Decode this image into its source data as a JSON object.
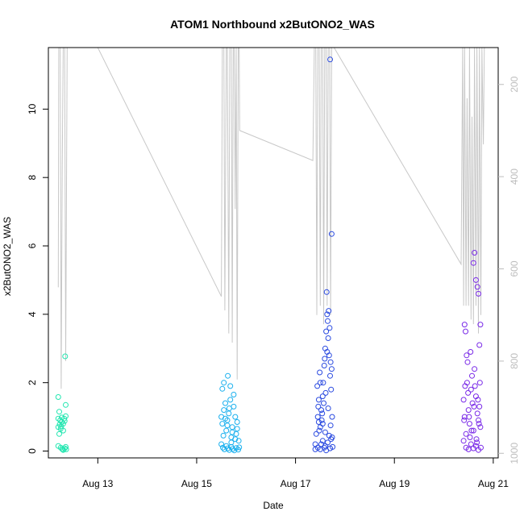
{
  "chart_data": {
    "type": "scatter",
    "title": "ATOM1 Northbound x2ButONO2_WAS",
    "xlabel": "Date",
    "ylabel": "x2ButONO2_WAS",
    "x_unit": "day of August",
    "xlim": [
      12.0,
      21.1
    ],
    "ylim": [
      -0.2,
      11.8
    ],
    "x_ticks": [
      {
        "value": 13,
        "label": "Aug 13"
      },
      {
        "value": 15,
        "label": "Aug 15"
      },
      {
        "value": 17,
        "label": "Aug 17"
      },
      {
        "value": 19,
        "label": "Aug 19"
      },
      {
        "value": 21,
        "label": "Aug 21"
      }
    ],
    "y_ticks": [
      {
        "value": 0,
        "label": "0"
      },
      {
        "value": 2,
        "label": "2"
      },
      {
        "value": 4,
        "label": "4"
      },
      {
        "value": 6,
        "label": "6"
      },
      {
        "value": 8,
        "label": "8"
      },
      {
        "value": 10,
        "label": "10"
      }
    ],
    "secondary_axis": {
      "reversed": true,
      "lim": [
        1010,
        120
      ],
      "color": "#bdbdbd",
      "ticks": [
        {
          "value": 200,
          "label": "200"
        },
        {
          "value": 400,
          "label": "400"
        },
        {
          "value": 600,
          "label": "600"
        },
        {
          "value": 800,
          "label": "800"
        },
        {
          "value": 1000,
          "label": "1000"
        }
      ]
    },
    "grid": false,
    "legend": "none",
    "colors": {
      "aug12": "#22e6b0",
      "aug15": "#1ab0ee",
      "aug17": "#2a4ae0",
      "aug20": "#7a2ae8",
      "pressure_line": "#c8c8c8"
    },
    "series": [
      {
        "color": "#22e6b0",
        "points": [
          [
            12.2,
            1.58
          ],
          [
            12.22,
            1.15
          ],
          [
            12.2,
            0.95
          ],
          [
            12.24,
            0.9
          ],
          [
            12.27,
            0.85
          ],
          [
            12.3,
            0.8
          ],
          [
            12.23,
            0.78
          ],
          [
            12.32,
            0.95
          ],
          [
            12.35,
            1.02
          ],
          [
            12.2,
            0.7
          ],
          [
            12.25,
            0.65
          ],
          [
            12.3,
            0.6
          ],
          [
            12.22,
            0.5
          ],
          [
            12.26,
            0.72
          ],
          [
            12.33,
            0.88
          ],
          [
            12.35,
            1.35
          ],
          [
            12.2,
            0.15
          ],
          [
            12.25,
            0.1
          ],
          [
            12.28,
            0.06
          ],
          [
            12.3,
            0.04
          ],
          [
            12.33,
            0.08
          ],
          [
            12.35,
            0.12
          ],
          [
            12.36,
            0.05
          ],
          [
            12.34,
            2.77
          ],
          [
            12.27,
            0.98
          ],
          [
            12.3,
            0.03
          ]
        ]
      },
      {
        "color": "#1ab0ee",
        "points": [
          [
            15.5,
            1.0
          ],
          [
            15.52,
            0.8
          ],
          [
            15.55,
            1.2
          ],
          [
            15.58,
            1.4
          ],
          [
            15.6,
            0.6
          ],
          [
            15.62,
            0.9
          ],
          [
            15.65,
            1.1
          ],
          [
            15.68,
            1.5
          ],
          [
            15.7,
            0.4
          ],
          [
            15.72,
            0.7
          ],
          [
            15.75,
            1.3
          ],
          [
            15.78,
            1.0
          ],
          [
            15.8,
            0.5
          ],
          [
            15.82,
            0.85
          ],
          [
            15.85,
            0.3
          ],
          [
            15.5,
            0.2
          ],
          [
            15.53,
            0.1
          ],
          [
            15.56,
            0.05
          ],
          [
            15.6,
            0.15
          ],
          [
            15.63,
            0.08
          ],
          [
            15.66,
            0.03
          ],
          [
            15.7,
            0.12
          ],
          [
            15.73,
            0.06
          ],
          [
            15.76,
            0.02
          ],
          [
            15.8,
            0.09
          ],
          [
            15.84,
            0.04
          ],
          [
            15.86,
            0.11
          ],
          [
            15.52,
            1.82
          ],
          [
            15.55,
            2.0
          ],
          [
            15.63,
            2.2
          ],
          [
            15.68,
            1.9
          ],
          [
            15.75,
            1.65
          ],
          [
            15.58,
            0.95
          ],
          [
            15.62,
            0.75
          ],
          [
            15.66,
            1.25
          ],
          [
            15.72,
            0.55
          ],
          [
            15.78,
            0.35
          ],
          [
            15.82,
            0.65
          ],
          [
            15.54,
            0.45
          ],
          [
            15.7,
            0.25
          ]
        ]
      },
      {
        "color": "#2a4ae0",
        "points": [
          [
            17.4,
            0.2
          ],
          [
            17.42,
            0.5
          ],
          [
            17.45,
            1.0
          ],
          [
            17.47,
            1.5
          ],
          [
            17.5,
            2.0
          ],
          [
            17.52,
            1.2
          ],
          [
            17.55,
            0.8
          ],
          [
            17.58,
            2.5
          ],
          [
            17.6,
            3.0
          ],
          [
            17.62,
            3.5
          ],
          [
            17.64,
            4.0
          ],
          [
            17.66,
            3.3
          ],
          [
            17.68,
            2.8
          ],
          [
            17.7,
            2.2
          ],
          [
            17.72,
            1.8
          ],
          [
            17.74,
            1.0
          ],
          [
            17.45,
            0.1
          ],
          [
            17.5,
            0.05
          ],
          [
            17.55,
            0.3
          ],
          [
            17.6,
            0.15
          ],
          [
            17.65,
            0.25
          ],
          [
            17.7,
            0.08
          ],
          [
            17.75,
            0.12
          ],
          [
            17.4,
            0.05
          ],
          [
            17.48,
            0.6
          ],
          [
            17.53,
            0.9
          ],
          [
            17.57,
            1.4
          ],
          [
            17.61,
            1.7
          ],
          [
            17.63,
            4.65
          ],
          [
            17.67,
            4.1
          ],
          [
            17.69,
            3.6
          ],
          [
            17.71,
            2.6
          ],
          [
            17.73,
            2.4
          ],
          [
            17.7,
            11.45
          ],
          [
            17.73,
            6.35
          ],
          [
            17.46,
            1.3
          ],
          [
            17.5,
            0.7
          ],
          [
            17.55,
            1.6
          ],
          [
            17.59,
            2.7
          ],
          [
            17.65,
            3.8
          ],
          [
            17.68,
            0.45
          ],
          [
            17.72,
            0.35
          ],
          [
            17.52,
            0.2
          ],
          [
            17.58,
            0.1
          ],
          [
            17.62,
            0.02
          ],
          [
            17.44,
            1.9
          ],
          [
            17.49,
            2.3
          ],
          [
            17.54,
            1.1
          ],
          [
            17.6,
            0.55
          ],
          [
            17.66,
            1.25
          ],
          [
            17.71,
            0.75
          ],
          [
            17.74,
            0.4
          ],
          [
            17.47,
            0.85
          ],
          [
            17.56,
            2.0
          ],
          [
            17.64,
            2.9
          ]
        ]
      },
      {
        "color": "#7a2ae8",
        "points": [
          [
            20.4,
            1.5
          ],
          [
            20.42,
            1.0
          ],
          [
            20.45,
            0.5
          ],
          [
            20.47,
            2.0
          ],
          [
            20.5,
            1.2
          ],
          [
            20.52,
            0.8
          ],
          [
            20.55,
            1.8
          ],
          [
            20.58,
            1.4
          ],
          [
            20.6,
            0.6
          ],
          [
            20.62,
            2.4
          ],
          [
            20.65,
            1.6
          ],
          [
            20.68,
            1.1
          ],
          [
            20.7,
            0.9
          ],
          [
            20.72,
            1.3
          ],
          [
            20.74,
            0.7
          ],
          [
            20.4,
            0.3
          ],
          [
            20.45,
            0.1
          ],
          [
            20.5,
            0.05
          ],
          [
            20.55,
            0.2
          ],
          [
            20.6,
            0.08
          ],
          [
            20.65,
            0.15
          ],
          [
            20.7,
            0.03
          ],
          [
            20.75,
            0.1
          ],
          [
            20.42,
            3.7
          ],
          [
            20.44,
            3.5
          ],
          [
            20.46,
            2.8
          ],
          [
            20.48,
            2.6
          ],
          [
            20.6,
            5.5
          ],
          [
            20.62,
            5.8
          ],
          [
            20.65,
            5.0
          ],
          [
            20.68,
            4.8
          ],
          [
            20.7,
            4.6
          ],
          [
            20.72,
            3.1
          ],
          [
            20.74,
            3.7
          ],
          [
            20.43,
            1.9
          ],
          [
            20.49,
            1.7
          ],
          [
            20.53,
            0.4
          ],
          [
            20.57,
            2.2
          ],
          [
            20.63,
            1.9
          ],
          [
            20.66,
            0.35
          ],
          [
            20.69,
            1.5
          ],
          [
            20.73,
            2.0
          ],
          [
            20.51,
            1.0
          ],
          [
            20.56,
            0.6
          ],
          [
            20.61,
            1.3
          ],
          [
            20.67,
            0.25
          ],
          [
            20.71,
            0.8
          ],
          [
            20.41,
            0.9
          ],
          [
            20.54,
            2.9
          ]
        ]
      }
    ],
    "pressure_line": [
      [
        12.2,
        640
      ],
      [
        12.21,
        120
      ],
      [
        12.24,
        120
      ],
      [
        12.26,
        860
      ],
      [
        12.28,
        380
      ],
      [
        12.3,
        120
      ],
      [
        12.33,
        120
      ],
      [
        12.35,
        800
      ],
      [
        12.38,
        120
      ],
      [
        12.41,
        120
      ],
      [
        13.0,
        120
      ],
      [
        15.5,
        660
      ],
      [
        15.52,
        120
      ],
      [
        15.55,
        120
      ],
      [
        15.57,
        690
      ],
      [
        15.6,
        120
      ],
      [
        15.62,
        120
      ],
      [
        15.65,
        740
      ],
      [
        15.67,
        120
      ],
      [
        15.7,
        120
      ],
      [
        15.72,
        760
      ],
      [
        15.74,
        120
      ],
      [
        15.76,
        120
      ],
      [
        15.78,
        470
      ],
      [
        15.8,
        120
      ],
      [
        15.82,
        840
      ],
      [
        15.84,
        120
      ],
      [
        15.86,
        120
      ],
      [
        15.87,
        300
      ],
      [
        17.35,
        365
      ],
      [
        17.38,
        120
      ],
      [
        17.41,
        120
      ],
      [
        17.43,
        700
      ],
      [
        17.45,
        120
      ],
      [
        17.48,
        120
      ],
      [
        17.5,
        680
      ],
      [
        17.52,
        120
      ],
      [
        17.55,
        120
      ],
      [
        17.57,
        720
      ],
      [
        17.59,
        120
      ],
      [
        17.62,
        120
      ],
      [
        17.64,
        680
      ],
      [
        17.66,
        120
      ],
      [
        17.69,
        120
      ],
      [
        17.71,
        700
      ],
      [
        17.73,
        120
      ],
      [
        17.76,
        120
      ],
      [
        17.78,
        120
      ],
      [
        20.35,
        590
      ],
      [
        20.38,
        120
      ],
      [
        20.4,
        680
      ],
      [
        20.42,
        120
      ],
      [
        20.45,
        680
      ],
      [
        20.47,
        230
      ],
      [
        20.5,
        680
      ],
      [
        20.52,
        120
      ],
      [
        20.55,
        710
      ],
      [
        20.57,
        270
      ],
      [
        20.6,
        720
      ],
      [
        20.62,
        120
      ],
      [
        20.65,
        680
      ],
      [
        20.67,
        120
      ],
      [
        20.7,
        740
      ],
      [
        20.72,
        120
      ],
      [
        20.75,
        700
      ],
      [
        20.77,
        120
      ],
      [
        20.8,
        330
      ],
      [
        20.82,
        120
      ]
    ]
  }
}
